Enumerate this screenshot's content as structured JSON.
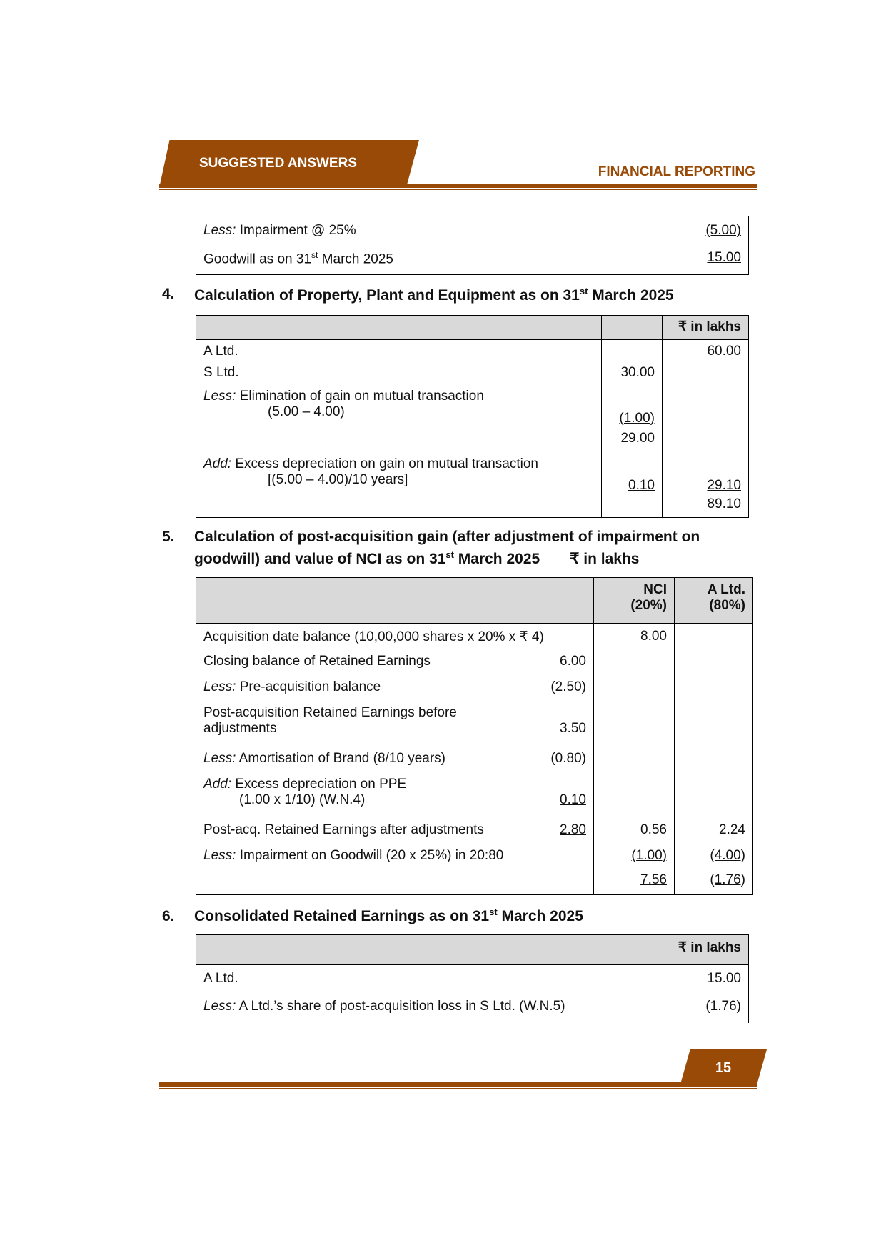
{
  "header": {
    "left_tab": "SUGGESTED ANSWERS",
    "right_title": "FINANCIAL REPORTING",
    "accent_color": "#994a07"
  },
  "goodwill_table": {
    "rows": [
      {
        "prefix": "Less:",
        "label": " Impairment @ 25%",
        "value": "(5.00)"
      },
      {
        "label": "Goodwill as on 31",
        "sup": "st",
        "label_end": " March 2025",
        "value": "15.00"
      }
    ]
  },
  "section4": {
    "number": "4.",
    "title": "Calculation of Property, Plant and Equipment as on 31",
    "sup": "st",
    "title_end": " March 2025",
    "unit": "₹ in lakhs",
    "rows": [
      {
        "label": "A Ltd.",
        "c1": "",
        "c2": "60.00"
      },
      {
        "label": "S Ltd.",
        "c1": "30.00",
        "c2": ""
      },
      {
        "prefix": "Less:",
        "label": " Elimination of gain on mutual transaction",
        "line2": "(5.00 – 4.00)",
        "c1": "(1.00)",
        "c2": ""
      },
      {
        "label": "",
        "c1": "29.00",
        "c2": ""
      },
      {
        "prefix": "Add:",
        "label": " Excess depreciation on gain on mutual transaction",
        "line2": "[(5.00 – 4.00)/10 years]",
        "c1": "0.10",
        "c2": "29.10"
      },
      {
        "label": "",
        "c1": "",
        "c2": "89.10"
      }
    ]
  },
  "section5": {
    "number": "5.",
    "title_line1": "Calculation of post-acquisition gain (after adjustment of impairment",
    "title_line2": "on goodwill) and value of NCI as on 31",
    "sup": "st",
    "title_end": " March 2025",
    "unit": "₹ in lakhs",
    "col_nci": "NCI",
    "col_nci_pct": "(20%)",
    "col_altd": "A Ltd.",
    "col_altd_pct": "(80%)",
    "rows": [
      {
        "label": "Acquisition date balance (10,00,000 shares x 20% x ₹ 4)",
        "inner": "",
        "nci": "8.00",
        "altd": ""
      },
      {
        "label": "Closing balance of Retained Earnings",
        "inner": "6.00",
        "nci": "",
        "altd": ""
      },
      {
        "prefix": "Less:",
        "label": " Pre-acquisition balance",
        "inner": "(2.50)",
        "nci": "",
        "altd": ""
      },
      {
        "label": "Post-acquisition Retained Earnings before",
        "line2": "adjustments",
        "inner": "3.50",
        "nci": "",
        "altd": ""
      },
      {
        "prefix": "Less:",
        "label": " Amortisation of Brand (8/10 years)",
        "inner": "(0.80)",
        "nci": "",
        "altd": ""
      },
      {
        "prefix": "Add:",
        "label": " Excess depreciation on PPE",
        "line2": "(1.00 x 1/10) (W.N.4)",
        "inner": "0.10",
        "nci": "",
        "altd": ""
      },
      {
        "label": "Post-acq. Retained Earnings after adjustments",
        "inner": "2.80",
        "nci": "0.56",
        "altd": "2.24"
      },
      {
        "prefix": "Less:",
        "label": " Impairment on Goodwill (20 x 25%) in 20:80",
        "inner": "",
        "nci": "(1.00)",
        "altd": "(4.00)"
      },
      {
        "label": "",
        "inner": "",
        "nci": "7.56",
        "altd": "(1.76)"
      }
    ]
  },
  "section6": {
    "number": "6.",
    "title": "Consolidated Retained Earnings as on 31",
    "sup": "st",
    "title_end": " March 2025",
    "unit": "₹ in lakhs",
    "rows": [
      {
        "label": "A Ltd.",
        "value": "15.00"
      },
      {
        "prefix": "Less:",
        "label": " A Ltd.’s share of post-acquisition loss in S Ltd. (W.N.5)",
        "value": "(1.76)"
      }
    ]
  },
  "footer": {
    "page_number": "15"
  }
}
